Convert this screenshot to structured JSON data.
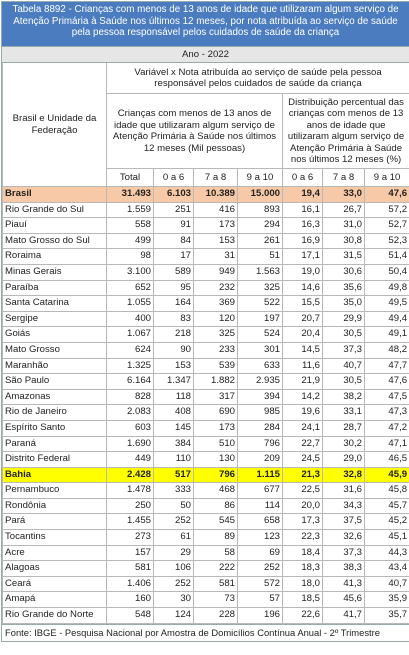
{
  "header": {
    "title": "Tabela 8892 - Crianças com menos de 13 anos de idade que utilizaram algum serviço de Atenção Primária à Saúde nos últimos 12 meses, por nota atribuída ao serviço de saúde pela pessoa responsável pelos cuidados de saúde da criança",
    "year": "Ano - 2022"
  },
  "table": {
    "row_header": "Brasil e Unidade da Federação",
    "group_header": "Variável x Nota atribuída ao serviço de saúde pela pessoa responsável pelos cuidados de saúde da criança",
    "variables": [
      "Crianças com menos de 13 anos de idade que utilizaram algum serviço de Atenção Primária à Saúde nos últimos 12 meses (Mil pessoas)",
      "Distribuição percentual das crianças com menos de 13 anos de idade que utilizaram algum serviço de Atenção Primária à Saúde nos últimos 12 meses (%)"
    ],
    "columns": [
      "Total",
      "0 a 6",
      "7 a 8",
      "9 a 10",
      "0 a 6",
      "7 a 8",
      "9 a 10"
    ],
    "rows": [
      [
        "Brasil",
        "31.493",
        "6.103",
        "10.389",
        "15.000",
        "19,4",
        "33,0",
        "47,6"
      ],
      [
        "Rio Grande do Sul",
        "1.559",
        "251",
        "416",
        "893",
        "16,1",
        "26,7",
        "57,2"
      ],
      [
        "Piauí",
        "558",
        "91",
        "173",
        "294",
        "16,3",
        "31,0",
        "52,7"
      ],
      [
        "Mato Grosso do Sul",
        "499",
        "84",
        "153",
        "261",
        "16,9",
        "30,8",
        "52,3"
      ],
      [
        "Roraima",
        "98",
        "17",
        "31",
        "51",
        "17,1",
        "31,5",
        "51,4"
      ],
      [
        "Minas Gerais",
        "3.100",
        "589",
        "949",
        "1.563",
        "19,0",
        "30,6",
        "50,4"
      ],
      [
        "Paraíba",
        "652",
        "95",
        "232",
        "325",
        "14,6",
        "35,6",
        "49,8"
      ],
      [
        "Santa Catarina",
        "1.055",
        "164",
        "369",
        "522",
        "15,5",
        "35,0",
        "49,5"
      ],
      [
        "Sergipe",
        "400",
        "83",
        "120",
        "197",
        "20,7",
        "29,9",
        "49,4"
      ],
      [
        "Goiás",
        "1.067",
        "218",
        "325",
        "524",
        "20,4",
        "30,5",
        "49,1"
      ],
      [
        "Mato Grosso",
        "624",
        "90",
        "233",
        "301",
        "14,5",
        "37,3",
        "48,2"
      ],
      [
        "Maranhão",
        "1.325",
        "153",
        "539",
        "633",
        "11,6",
        "40,7",
        "47,7"
      ],
      [
        "São Paulo",
        "6.164",
        "1.347",
        "1.882",
        "2.935",
        "21,9",
        "30,5",
        "47,6"
      ],
      [
        "Amazonas",
        "828",
        "118",
        "317",
        "394",
        "14,2",
        "38,2",
        "47,5"
      ],
      [
        "Rio de Janeiro",
        "2.083",
        "408",
        "690",
        "985",
        "19,6",
        "33,1",
        "47,3"
      ],
      [
        "Espírito Santo",
        "603",
        "145",
        "173",
        "284",
        "24,1",
        "28,7",
        "47,2"
      ],
      [
        "Paraná",
        "1.690",
        "384",
        "510",
        "796",
        "22,7",
        "30,2",
        "47,1"
      ],
      [
        "Distrito Federal",
        "449",
        "110",
        "130",
        "209",
        "24,5",
        "29,0",
        "46,5"
      ],
      [
        "Bahia",
        "2.428",
        "517",
        "796",
        "1.115",
        "21,3",
        "32,8",
        "45,9"
      ],
      [
        "Pernambuco",
        "1.478",
        "333",
        "468",
        "677",
        "22,5",
        "31,6",
        "45,8"
      ],
      [
        "Rondônia",
        "250",
        "50",
        "86",
        "114",
        "20,0",
        "34,3",
        "45,7"
      ],
      [
        "Pará",
        "1.455",
        "252",
        "545",
        "658",
        "17,3",
        "37,5",
        "45,2"
      ],
      [
        "Tocantins",
        "273",
        "61",
        "89",
        "123",
        "22,3",
        "32,6",
        "45,1"
      ],
      [
        "Acre",
        "157",
        "29",
        "58",
        "69",
        "18,4",
        "37,3",
        "44,3"
      ],
      [
        "Alagoas",
        "581",
        "106",
        "222",
        "252",
        "18,3",
        "38,3",
        "43,4"
      ],
      [
        "Ceará",
        "1.406",
        "252",
        "581",
        "572",
        "18,0",
        "41,3",
        "40,7"
      ],
      [
        "Amapá",
        "160",
        "30",
        "73",
        "57",
        "18,5",
        "45,6",
        "35,9"
      ],
      [
        "Rio Grande do Norte",
        "548",
        "124",
        "228",
        "196",
        "22,6",
        "41,7",
        "35,7"
      ]
    ]
  },
  "footer": "Fonte: IBGE - Pesquisa Nacional por Amostra de Domicílios Contínua Anual - 2º Trimestre"
}
